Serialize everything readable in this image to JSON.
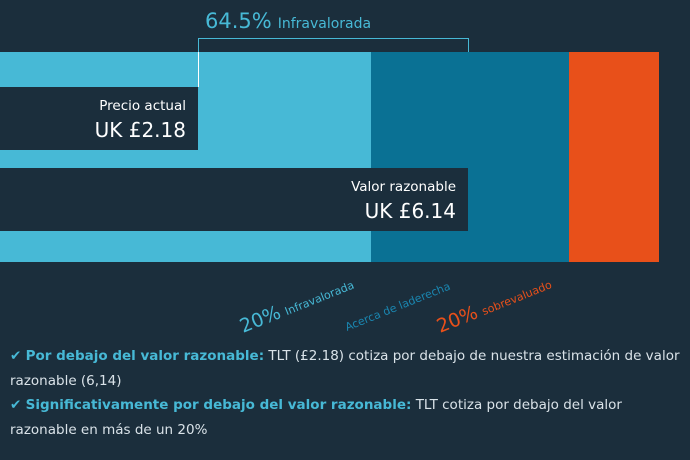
{
  "header": {
    "discount_value": "64.5%",
    "discount_label": "Infravalorada"
  },
  "current_price": {
    "label": "Precio actual",
    "value": "UK £2.18"
  },
  "fair_value": {
    "label": "Valor razonable",
    "value": "UK £6.14"
  },
  "zones": [
    {
      "percent": "20%",
      "label": "Infravalorada"
    },
    {
      "label": "Acerca de laderecha"
    },
    {
      "percent": "20%",
      "label": "sobrevaluado"
    }
  ],
  "checks": [
    {
      "icon": "✔",
      "title": "Por debajo del valor razonable:",
      "text": "TLT (£2.18) cotiza por debajo de nuestra estimación de valor razonable (6,14)"
    },
    {
      "icon": "✔",
      "title": "Significativamente por debajo del valor razonable:",
      "text": "TLT cotiza por debajo del valor razonable en más de un 20%"
    }
  ]
}
